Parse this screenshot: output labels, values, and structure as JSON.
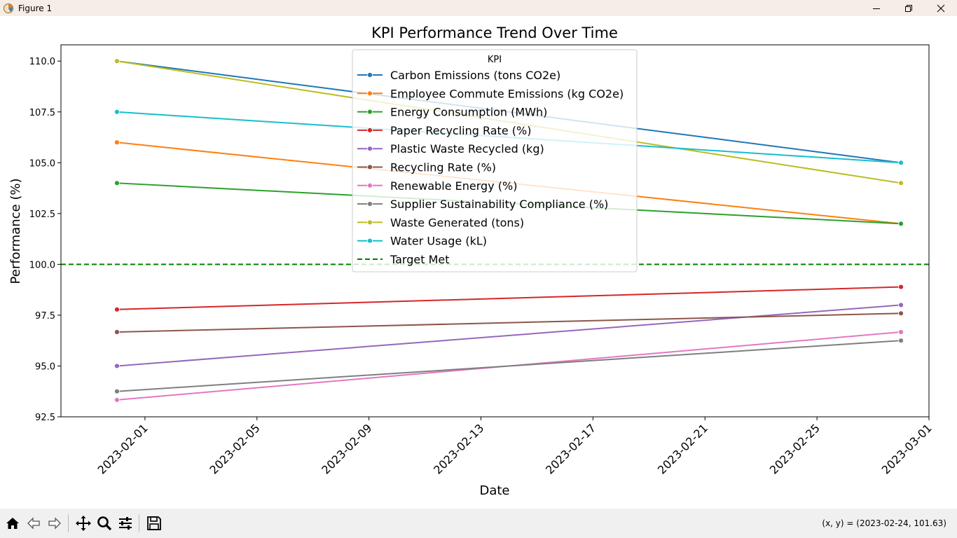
{
  "window": {
    "title": "Figure 1"
  },
  "toolbar": {
    "coord_readout": "(x, y) = (2023-02-24, 101.63)",
    "buttons": [
      "home-icon",
      "back-icon",
      "forward-icon",
      "pan-icon",
      "zoom-icon",
      "configure-subplots-icon",
      "save-icon"
    ]
  },
  "chart_data": {
    "type": "line",
    "title": "KPI Performance Trend Over Time",
    "xlabel": "Date",
    "ylabel": "Performance (%)",
    "x": [
      "2023-01-31",
      "2023-02-28"
    ],
    "xticks": [
      "2023-02-01",
      "2023-02-05",
      "2023-02-09",
      "2023-02-13",
      "2023-02-17",
      "2023-02-21",
      "2023-02-25",
      "2023-03-01"
    ],
    "xlim": [
      "2023-01-29",
      "2023-03-01"
    ],
    "ylim": [
      92.5,
      110.8
    ],
    "yticks": [
      "92.5",
      "95.0",
      "97.5",
      "100.0",
      "102.5",
      "105.0",
      "107.5",
      "110.0"
    ],
    "legend_title": "KPI",
    "legend_position": "upper center",
    "series": [
      {
        "name": "Carbon Emissions (tons CO2e)",
        "color": "#1f77b4",
        "values": [
          110.0,
          105.0
        ]
      },
      {
        "name": "Employee Commute Emissions (kg CO2e)",
        "color": "#ff7f0e",
        "values": [
          106.0,
          102.0
        ]
      },
      {
        "name": "Energy Consumption (MWh)",
        "color": "#2ca02c",
        "values": [
          104.0,
          102.0
        ]
      },
      {
        "name": "Paper Recycling Rate (%)",
        "color": "#d62728",
        "values": [
          97.78,
          98.89
        ]
      },
      {
        "name": "Plastic Waste Recycled (kg)",
        "color": "#9467bd",
        "values": [
          95.0,
          98.0
        ]
      },
      {
        "name": "Recycling Rate (%)",
        "color": "#8c564b",
        "values": [
          96.67,
          97.59
        ]
      },
      {
        "name": "Renewable Energy (%)",
        "color": "#e377c2",
        "values": [
          93.33,
          96.67
        ]
      },
      {
        "name": "Supplier Sustainability Compliance (%)",
        "color": "#7f7f7f",
        "values": [
          93.75,
          96.25
        ]
      },
      {
        "name": "Waste Generated (tons)",
        "color": "#bcbd22",
        "values": [
          110.0,
          104.0
        ]
      },
      {
        "name": "Water Usage (kL)",
        "color": "#17becf",
        "values": [
          107.5,
          105.0
        ]
      }
    ],
    "reference_line": {
      "name": "Target Met",
      "y": 100.0,
      "color": "#008000",
      "style": "dashed"
    }
  }
}
